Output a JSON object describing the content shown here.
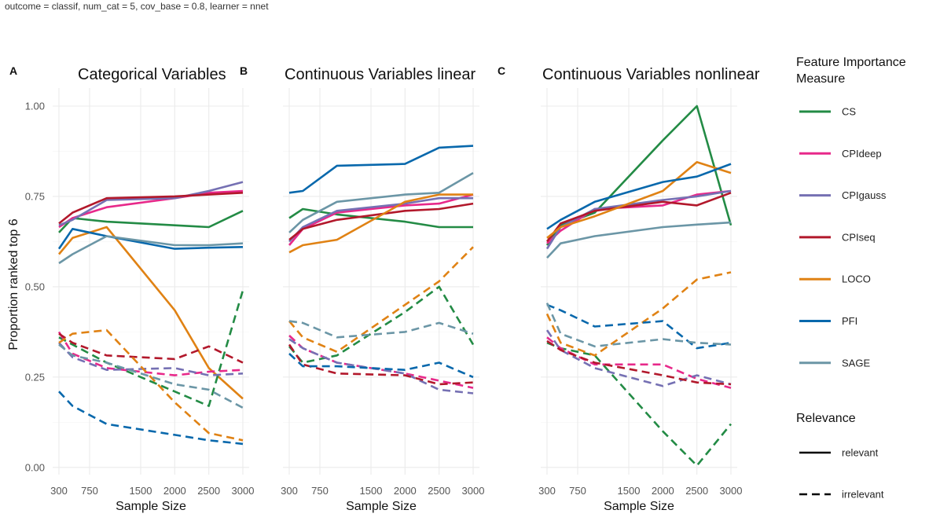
{
  "caption": "outcome = classif, num_cat = 5, cov_base = 0.8, learner = nnet",
  "chart_data": {
    "type": "line",
    "ylabel": "Proportion ranked top 6",
    "xlabel": "Sample Size",
    "x": [
      300,
      500,
      1000,
      2000,
      2500,
      3000
    ],
    "x_ticks": [
      300,
      750,
      1500,
      2000,
      2500,
      3000
    ],
    "x_tick_labels": [
      "300",
      "750",
      "1500",
      "2000",
      "2500",
      "3000"
    ],
    "ylim": [
      -0.02,
      1.05
    ],
    "y_ticks": [
      0.0,
      0.25,
      0.5,
      0.75,
      1.0
    ],
    "y_tick_labels": [
      "0.00",
      "0.25",
      "0.50",
      "0.75",
      "1.00"
    ],
    "legend": {
      "title_line1": "Feature Importance",
      "title_line2": "Measure",
      "relevance_title": "Relevance",
      "relevance_items": [
        "relevant",
        "irrelevant"
      ]
    },
    "measures": [
      {
        "name": "CS",
        "color": "#238b45"
      },
      {
        "name": "CPIdeep",
        "color": "#e7298a"
      },
      {
        "name": "CPIgauss",
        "color": "#7570b3"
      },
      {
        "name": "CPIseq",
        "color": "#b2182b"
      },
      {
        "name": "LOCO",
        "color": "#e08214"
      },
      {
        "name": "PFI",
        "color": "#0868ac"
      },
      {
        "name": "SAGE",
        "color": "#6b96a6"
      }
    ],
    "panels": [
      {
        "tag": "A",
        "title": "Categorical Variables",
        "series": [
          {
            "measure": "CS",
            "relevance": "relevant",
            "values": [
              0.65,
              0.69,
              0.68,
              0.67,
              0.665,
              0.71
            ]
          },
          {
            "measure": "CPIdeep",
            "relevance": "relevant",
            "values": [
              0.665,
              0.69,
              0.72,
              0.745,
              0.76,
              0.765
            ]
          },
          {
            "measure": "CPIgauss",
            "relevance": "relevant",
            "values": [
              0.67,
              0.685,
              0.74,
              0.745,
              0.765,
              0.79
            ]
          },
          {
            "measure": "CPIseq",
            "relevance": "relevant",
            "values": [
              0.675,
              0.705,
              0.745,
              0.75,
              0.755,
              0.76
            ]
          },
          {
            "measure": "LOCO",
            "relevance": "relevant",
            "values": [
              0.59,
              0.635,
              0.665,
              0.435,
              0.275,
              0.19
            ]
          },
          {
            "measure": "PFI",
            "relevance": "relevant",
            "values": [
              0.605,
              0.66,
              0.64,
              0.605,
              0.608,
              0.61
            ]
          },
          {
            "measure": "SAGE",
            "relevance": "relevant",
            "values": [
              0.565,
              0.59,
              0.64,
              0.615,
              0.615,
              0.62
            ]
          },
          {
            "measure": "CS",
            "relevance": "irrelevant",
            "values": [
              0.36,
              0.34,
              0.29,
              0.21,
              0.17,
              0.49
            ]
          },
          {
            "measure": "CPIdeep",
            "relevance": "irrelevant",
            "values": [
              0.375,
              0.315,
              0.275,
              0.255,
              0.265,
              0.27
            ]
          },
          {
            "measure": "CPIgauss",
            "relevance": "irrelevant",
            "values": [
              0.345,
              0.305,
              0.27,
              0.275,
              0.255,
              0.26
            ]
          },
          {
            "measure": "CPIseq",
            "relevance": "irrelevant",
            "values": [
              0.37,
              0.345,
              0.31,
              0.3,
              0.335,
              0.29
            ]
          },
          {
            "measure": "LOCO",
            "relevance": "irrelevant",
            "values": [
              0.345,
              0.37,
              0.38,
              0.18,
              0.095,
              0.075
            ]
          },
          {
            "measure": "PFI",
            "relevance": "irrelevant",
            "values": [
              0.21,
              0.17,
              0.12,
              0.09,
              0.075,
              0.065
            ]
          },
          {
            "measure": "SAGE",
            "relevance": "irrelevant",
            "values": [
              0.34,
              0.31,
              0.29,
              0.23,
              0.215,
              0.165
            ]
          }
        ]
      },
      {
        "tag": "B",
        "title": "Continuous Variables linear",
        "series": [
          {
            "measure": "CS",
            "relevance": "relevant",
            "values": [
              0.69,
              0.715,
              0.7,
              0.68,
              0.665,
              0.665
            ]
          },
          {
            "measure": "CPIdeep",
            "relevance": "relevant",
            "values": [
              0.615,
              0.66,
              0.705,
              0.725,
              0.73,
              0.755
            ]
          },
          {
            "measure": "CPIgauss",
            "relevance": "relevant",
            "values": [
              0.625,
              0.665,
              0.71,
              0.73,
              0.745,
              0.745
            ]
          },
          {
            "measure": "CPIseq",
            "relevance": "relevant",
            "values": [
              0.63,
              0.66,
              0.685,
              0.71,
              0.715,
              0.73
            ]
          },
          {
            "measure": "LOCO",
            "relevance": "relevant",
            "values": [
              0.595,
              0.615,
              0.63,
              0.735,
              0.755,
              0.755
            ]
          },
          {
            "measure": "PFI",
            "relevance": "relevant",
            "values": [
              0.76,
              0.765,
              0.835,
              0.84,
              0.885,
              0.89
            ]
          },
          {
            "measure": "SAGE",
            "relevance": "relevant",
            "values": [
              0.65,
              0.685,
              0.735,
              0.755,
              0.76,
              0.815
            ]
          },
          {
            "measure": "CS",
            "relevance": "irrelevant",
            "values": [
              0.335,
              0.29,
              0.31,
              0.43,
              0.5,
              0.34
            ]
          },
          {
            "measure": "CPIdeep",
            "relevance": "irrelevant",
            "values": [
              0.365,
              0.33,
              0.29,
              0.26,
              0.24,
              0.22
            ]
          },
          {
            "measure": "CPIgauss",
            "relevance": "irrelevant",
            "values": [
              0.355,
              0.33,
              0.29,
              0.26,
              0.215,
              0.205
            ]
          },
          {
            "measure": "CPIseq",
            "relevance": "irrelevant",
            "values": [
              0.34,
              0.285,
              0.26,
              0.255,
              0.23,
              0.235
            ]
          },
          {
            "measure": "LOCO",
            "relevance": "irrelevant",
            "values": [
              0.405,
              0.36,
              0.32,
              0.45,
              0.515,
              0.61
            ]
          },
          {
            "measure": "PFI",
            "relevance": "irrelevant",
            "values": [
              0.315,
              0.28,
              0.28,
              0.27,
              0.29,
              0.25
            ]
          },
          {
            "measure": "SAGE",
            "relevance": "irrelevant",
            "values": [
              0.405,
              0.4,
              0.36,
              0.375,
              0.4,
              0.37
            ]
          }
        ]
      },
      {
        "tag": "C",
        "title": "Continuous Variables nonlinear",
        "series": [
          {
            "measure": "CS",
            "relevance": "relevant",
            "values": [
              0.615,
              0.67,
              0.705,
              0.905,
              1.0,
              0.67
            ]
          },
          {
            "measure": "CPIdeep",
            "relevance": "relevant",
            "values": [
              0.62,
              0.655,
              0.715,
              0.725,
              0.755,
              0.765
            ]
          },
          {
            "measure": "CPIgauss",
            "relevance": "relevant",
            "values": [
              0.605,
              0.665,
              0.715,
              0.74,
              0.75,
              0.765
            ]
          },
          {
            "measure": "CPIseq",
            "relevance": "relevant",
            "values": [
              0.625,
              0.675,
              0.71,
              0.735,
              0.725,
              0.76
            ]
          },
          {
            "measure": "LOCO",
            "relevance": "relevant",
            "values": [
              0.635,
              0.665,
              0.695,
              0.765,
              0.845,
              0.815
            ]
          },
          {
            "measure": "PFI",
            "relevance": "relevant",
            "values": [
              0.66,
              0.685,
              0.735,
              0.79,
              0.805,
              0.84
            ]
          },
          {
            "measure": "SAGE",
            "relevance": "relevant",
            "values": [
              0.58,
              0.62,
              0.64,
              0.665,
              0.672,
              0.678
            ]
          },
          {
            "measure": "CS",
            "relevance": "irrelevant",
            "values": [
              0.345,
              0.33,
              0.31,
              0.1,
              0.005,
              0.12
            ]
          },
          {
            "measure": "CPIdeep",
            "relevance": "irrelevant",
            "values": [
              0.36,
              0.33,
              0.285,
              0.285,
              0.245,
              0.22
            ]
          },
          {
            "measure": "CPIgauss",
            "relevance": "irrelevant",
            "values": [
              0.38,
              0.325,
              0.275,
              0.225,
              0.255,
              0.23
            ]
          },
          {
            "measure": "CPIseq",
            "relevance": "irrelevant",
            "values": [
              0.35,
              0.325,
              0.29,
              0.255,
              0.235,
              0.23
            ]
          },
          {
            "measure": "LOCO",
            "relevance": "irrelevant",
            "values": [
              0.425,
              0.345,
              0.31,
              0.44,
              0.52,
              0.54
            ]
          },
          {
            "measure": "PFI",
            "relevance": "irrelevant",
            "values": [
              0.45,
              0.435,
              0.39,
              0.405,
              0.33,
              0.345
            ]
          },
          {
            "measure": "SAGE",
            "relevance": "irrelevant",
            "values": [
              0.455,
              0.37,
              0.335,
              0.355,
              0.345,
              0.34
            ]
          }
        ]
      }
    ]
  }
}
